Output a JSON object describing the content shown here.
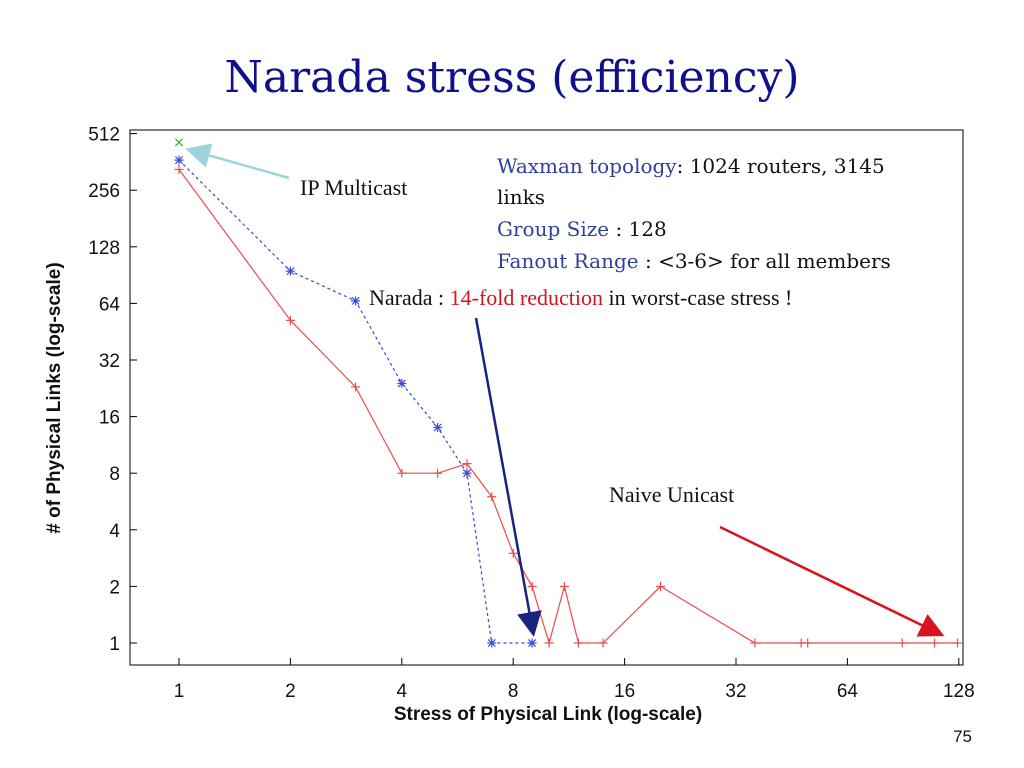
{
  "slide": {
    "title": "Narada stress (efficiency)",
    "page_number": "75"
  },
  "annotations": {
    "ip_multicast": "IP Multicast",
    "topology": {
      "key": "Waxman topology",
      "value": ": 1024 routers, 3145",
      "cont": "links"
    },
    "group_size": {
      "key": "Group Size",
      "value": " : 128"
    },
    "fanout": {
      "key": "Fanout Range",
      "value": " : <3-6> for all members"
    },
    "narada": {
      "prefix": "Narada : ",
      "highlight": "14-fold reduction",
      "suffix": " in worst-case stress !"
    },
    "naive_unicast": "Naive Unicast"
  },
  "colors": {
    "title": "#10108c",
    "naive_unicast": "#f04a4a",
    "narada": "#3b48e0",
    "ip_multicast": "#22b822",
    "arrow_ip": "#9fd3dc",
    "arrow_narada": "#1a237e",
    "arrow_naive": "#d8141e"
  },
  "chart_data": {
    "type": "line",
    "xlabel": "Stress of Physical Link (log-scale)",
    "ylabel": "# of Physical Links (log-scale)",
    "x_scale": "log2",
    "y_scale": "log2",
    "xlim": [
      1,
      128
    ],
    "ylim": [
      1,
      512
    ],
    "x_ticks": [
      "1",
      "2",
      "4",
      "8",
      "16",
      "32",
      "64",
      "128"
    ],
    "y_ticks": [
      "1",
      "2",
      "4",
      "8",
      "16",
      "32",
      "64",
      "128",
      "256",
      "512"
    ],
    "legend": "none",
    "series": [
      {
        "key": "naive",
        "marker": "+",
        "line": "solid",
        "points": [
          [
            1,
            330
          ],
          [
            2,
            52
          ],
          [
            3,
            23
          ],
          [
            4,
            8
          ],
          [
            5,
            8
          ],
          [
            6,
            9
          ],
          [
            7,
            6
          ],
          [
            8,
            3
          ],
          [
            9,
            2
          ],
          [
            10,
            1
          ],
          [
            11,
            2
          ],
          [
            12,
            1
          ],
          [
            14,
            1
          ],
          [
            20,
            2
          ],
          [
            36,
            1
          ],
          [
            48,
            1
          ],
          [
            50,
            1
          ],
          [
            90,
            1
          ],
          [
            110,
            1
          ],
          [
            127,
            1
          ]
        ]
      },
      {
        "key": "narada",
        "marker": "*",
        "line": "dotted",
        "points": [
          [
            1,
            370
          ],
          [
            2,
            95
          ],
          [
            3,
            66
          ],
          [
            4,
            24
          ],
          [
            5,
            14
          ],
          [
            6,
            8
          ],
          [
            7,
            1
          ],
          [
            9,
            1
          ]
        ]
      },
      {
        "key": "ipmc",
        "marker": "x",
        "line": "none",
        "points": [
          [
            1,
            460
          ]
        ]
      }
    ]
  }
}
